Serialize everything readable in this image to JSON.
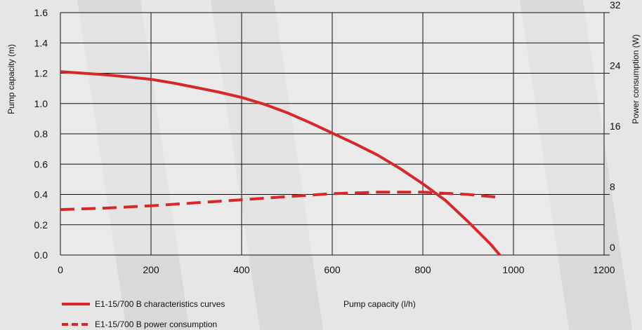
{
  "chart_data": {
    "type": "line",
    "xlabel": "Pump capacity (l/h)",
    "ylabel": "Pump capacity (m)",
    "y2label": "Power consumption (W)",
    "xlim": [
      0,
      1200
    ],
    "ylim": [
      0,
      1.6
    ],
    "y2lim": [
      0,
      32
    ],
    "x_ticks": [
      "0",
      "200",
      "400",
      "600",
      "800",
      "1000",
      "1200"
    ],
    "y_ticks": [
      "0.0",
      "0.2",
      "0.4",
      "0.6",
      "0.8",
      "1.0",
      "1.2",
      "1.4",
      "1.6"
    ],
    "y2_ticks": [
      "0",
      "8",
      "16",
      "24",
      "32"
    ],
    "grid": true,
    "legend_position": "bottom-left",
    "series": [
      {
        "name": "E1-15/700 B characteristics curves",
        "axis": "left",
        "style": "solid",
        "color": "#d6282b",
        "x": [
          0,
          50,
          100,
          150,
          200,
          250,
          300,
          350,
          400,
          450,
          500,
          550,
          600,
          650,
          700,
          750,
          800,
          850,
          900,
          950,
          970
        ],
        "y": [
          1.21,
          1.2,
          1.19,
          1.175,
          1.16,
          1.135,
          1.105,
          1.075,
          1.04,
          0.995,
          0.94,
          0.875,
          0.805,
          0.735,
          0.66,
          0.57,
          0.47,
          0.36,
          0.22,
          0.07,
          0.0
        ]
      },
      {
        "name": "E1-15/700 B power consumption",
        "axis": "right",
        "style": "dashed",
        "color": "#d6282b",
        "x": [
          0,
          100,
          200,
          300,
          400,
          500,
          600,
          700,
          800,
          900,
          970
        ],
        "y": [
          6.0,
          6.2,
          6.5,
          6.9,
          7.3,
          7.7,
          8.1,
          8.3,
          8.3,
          8.0,
          7.6
        ]
      }
    ]
  },
  "legend": {
    "item1": "E1-15/700 B characteristics curves",
    "item2": "E1-15/700 B power consumption"
  },
  "colors": {
    "background": "#e6e6e6",
    "band": "#d6d6d6",
    "plot_bg": "#ebebeb",
    "grid": "#111111",
    "series": "#d6282b"
  }
}
